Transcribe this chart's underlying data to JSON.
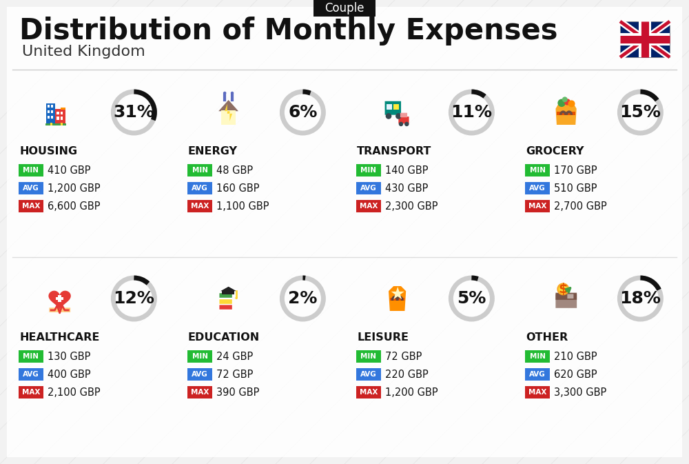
{
  "title": "Distribution of Monthly Expenses",
  "subtitle": "United Kingdom",
  "tag": "Couple",
  "bg_color": "#f2f2f2",
  "card_bg": "#ffffff",
  "categories": [
    {
      "name": "HOUSING",
      "pct": 31,
      "min": "410 GBP",
      "avg": "1,200 GBP",
      "max": "6,600 GBP",
      "icon_type": "housing",
      "row": 0,
      "col": 0
    },
    {
      "name": "ENERGY",
      "pct": 6,
      "min": "48 GBP",
      "avg": "160 GBP",
      "max": "1,100 GBP",
      "icon_type": "energy",
      "row": 0,
      "col": 1
    },
    {
      "name": "TRANSPORT",
      "pct": 11,
      "min": "140 GBP",
      "avg": "430 GBP",
      "max": "2,300 GBP",
      "icon_type": "transport",
      "row": 0,
      "col": 2
    },
    {
      "name": "GROCERY",
      "pct": 15,
      "min": "170 GBP",
      "avg": "510 GBP",
      "max": "2,700 GBP",
      "icon_type": "grocery",
      "row": 0,
      "col": 3
    },
    {
      "name": "HEALTHCARE",
      "pct": 12,
      "min": "130 GBP",
      "avg": "400 GBP",
      "max": "2,100 GBP",
      "icon_type": "healthcare",
      "row": 1,
      "col": 0
    },
    {
      "name": "EDUCATION",
      "pct": 2,
      "min": "24 GBP",
      "avg": "72 GBP",
      "max": "390 GBP",
      "icon_type": "education",
      "row": 1,
      "col": 1
    },
    {
      "name": "LEISURE",
      "pct": 5,
      "min": "72 GBP",
      "avg": "220 GBP",
      "max": "1,200 GBP",
      "icon_type": "leisure",
      "row": 1,
      "col": 2
    },
    {
      "name": "OTHER",
      "pct": 18,
      "min": "210 GBP",
      "avg": "620 GBP",
      "max": "3,300 GBP",
      "icon_type": "other",
      "row": 1,
      "col": 3
    }
  ],
  "min_color": "#22bb33",
  "avg_color": "#3377dd",
  "max_color": "#cc2222",
  "donut_filled_color": "#111111",
  "donut_empty_color": "#cccccc",
  "title_fontsize": 30,
  "subtitle_fontsize": 16,
  "tag_fontsize": 12,
  "cat_fontsize": 11.5,
  "val_fontsize": 10.5,
  "pct_fontsize": 18
}
